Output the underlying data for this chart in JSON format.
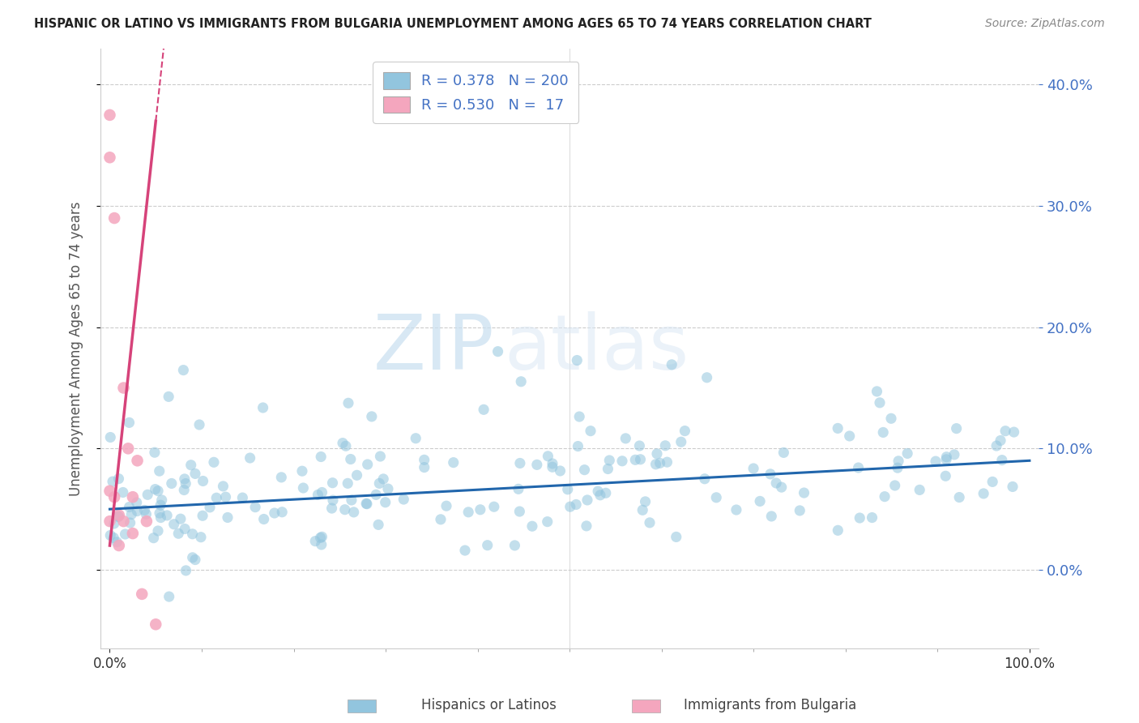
{
  "title": "HISPANIC OR LATINO VS IMMIGRANTS FROM BULGARIA UNEMPLOYMENT AMONG AGES 65 TO 74 YEARS CORRELATION CHART",
  "source": "Source: ZipAtlas.com",
  "ylabel": "Unemployment Among Ages 65 to 74 years",
  "legend_label_blue": "Hispanics or Latinos",
  "legend_label_pink": "Immigrants from Bulgaria",
  "R_blue": 0.378,
  "N_blue": 200,
  "R_pink": 0.53,
  "N_pink": 17,
  "color_blue": "#92c5de",
  "color_pink": "#f4a6be",
  "trendline_blue": "#2166ac",
  "trendline_pink": "#d6437a",
  "watermark_zip": "ZIP",
  "watermark_atlas": "atlas",
  "xlim": [
    -0.01,
    1.01
  ],
  "ylim": [
    -0.065,
    0.43
  ],
  "yticks": [
    0.0,
    0.1,
    0.2,
    0.3,
    0.4
  ],
  "xticks": [
    0.0,
    1.0
  ],
  "pink_x": [
    0.0,
    0.0,
    0.0,
    0.0,
    0.005,
    0.005,
    0.01,
    0.01,
    0.015,
    0.015,
    0.02,
    0.025,
    0.025,
    0.03,
    0.035,
    0.04,
    0.05
  ],
  "pink_y": [
    0.375,
    0.34,
    0.065,
    0.04,
    0.29,
    0.06,
    0.045,
    0.02,
    0.15,
    0.04,
    0.1,
    0.06,
    0.03,
    0.09,
    -0.02,
    0.04,
    -0.045
  ]
}
